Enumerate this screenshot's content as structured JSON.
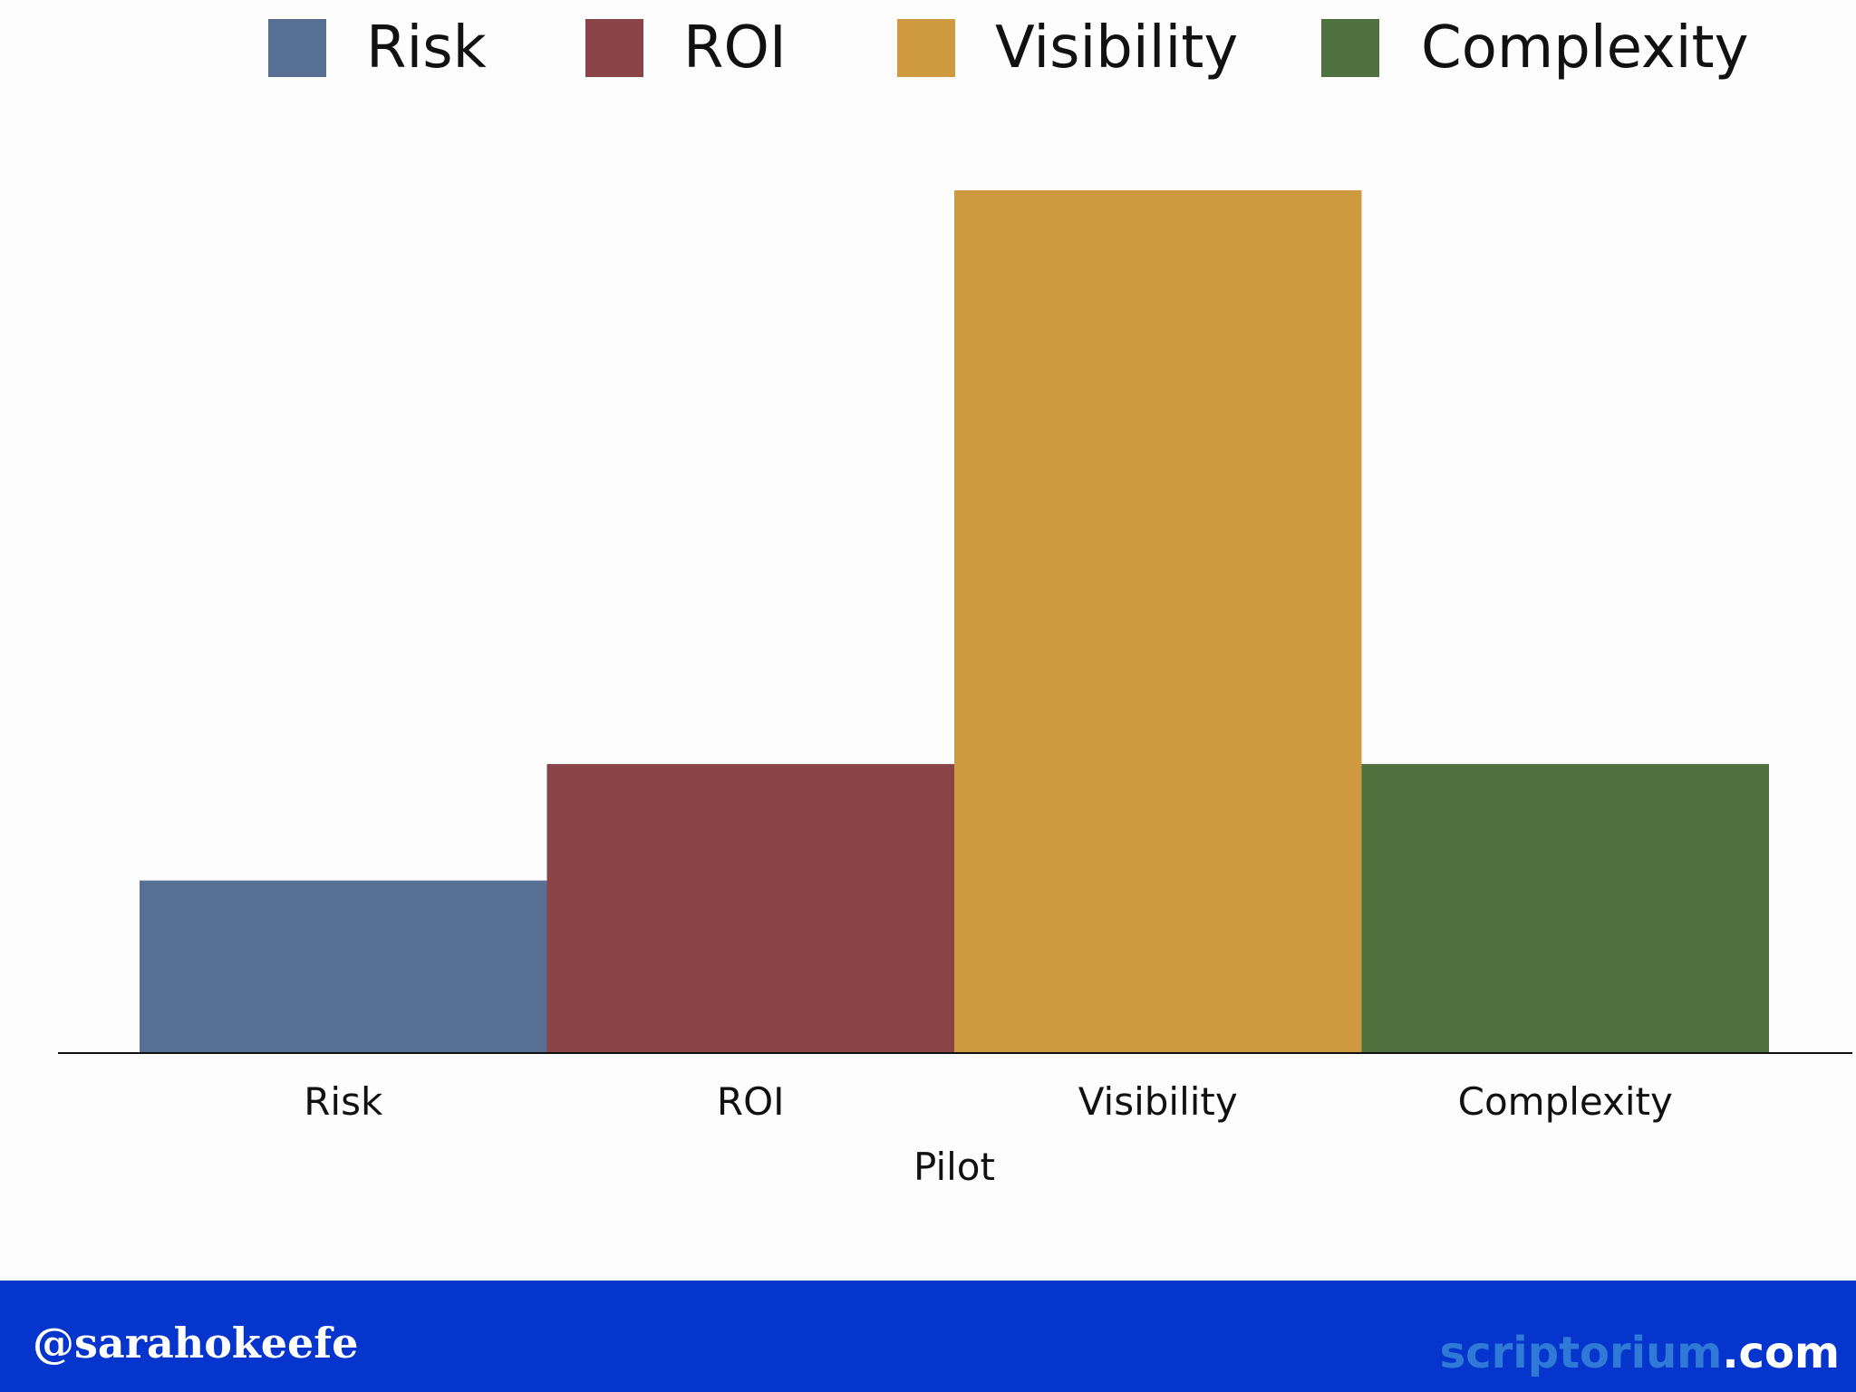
{
  "chart_data": {
    "type": "bar",
    "categories": [
      "Risk",
      "ROI",
      "Visibility",
      "Complexity"
    ],
    "values": [
      2,
      3.35,
      10,
      3.35
    ],
    "xlabel": "Pilot",
    "ylim": [
      0,
      10
    ],
    "grid": false,
    "legend": {
      "placement": "top",
      "entries": [
        "Risk",
        "ROI",
        "Visibility",
        "Complexity"
      ]
    },
    "colors": [
      "#586f94",
      "#8a4448",
      "#cf9a3f",
      "#4f713e"
    ]
  },
  "footer": {
    "handle": "@sarahokeefe",
    "site_name": "scriptorium",
    "site_tld": ".com",
    "background": "#0535cc"
  }
}
